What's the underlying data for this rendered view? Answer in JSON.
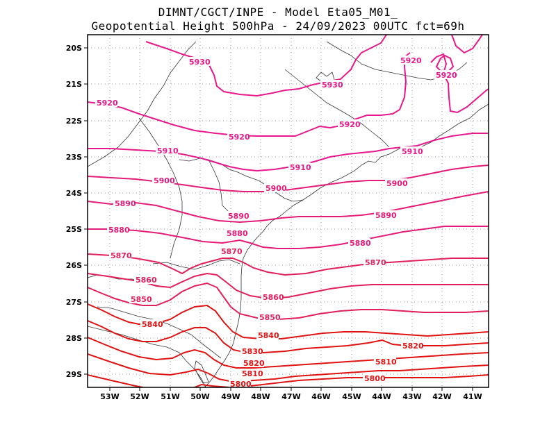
{
  "title_line1": "DIMNT/CGCT/INPE  -  Model Eta05_M01_",
  "title_line2": "Geopotential Height 500hPa  -  24/09/2023 00UTC fct=69h",
  "lon_labels": [
    "53W",
    "52W",
    "51W",
    "50W",
    "49W",
    "48W",
    "47W",
    "46W",
    "45W",
    "44W",
    "43W",
    "42W",
    "41W"
  ],
  "lat_labels": [
    "20S",
    "21S",
    "22S",
    "23S",
    "24S",
    "25S",
    "26S",
    "27S",
    "28S",
    "29S"
  ],
  "contour_labels": {
    "c5930a": "5930",
    "c5930b": "5930",
    "c5920a": "5920",
    "c5920b": "5920",
    "c5920c": "5920",
    "c5920d": "5920",
    "c5920e": "5920",
    "c5910a": "5910",
    "c5910b": "5910",
    "c5910c": "5910",
    "c5900a": "5900",
    "c5900b": "5900",
    "c5900c": "5900",
    "c5890a": "5890",
    "c5890b": "5890",
    "c5890c": "5890",
    "c5880a": "5880",
    "c5880b": "5880",
    "c5880c": "5880",
    "c5870a": "5870",
    "c5870b": "5870",
    "c5870c": "5870",
    "c5860a": "5860",
    "c5860b": "5860",
    "c5850a": "5850",
    "c5850b": "5850",
    "c5840a": "5840",
    "c5840b": "5840",
    "c5830": "5830",
    "c5820a": "5820",
    "c5820b": "5820",
    "c5810a": "5810",
    "c5810b": "5810",
    "c5800a": "5800",
    "c5800b": "5800"
  },
  "colors": {
    "high_contours": "#e8188c",
    "mid_contours": "#e21f5a",
    "low_contours": "#e01212",
    "grid": "#999999",
    "coastline": "#333333"
  }
}
